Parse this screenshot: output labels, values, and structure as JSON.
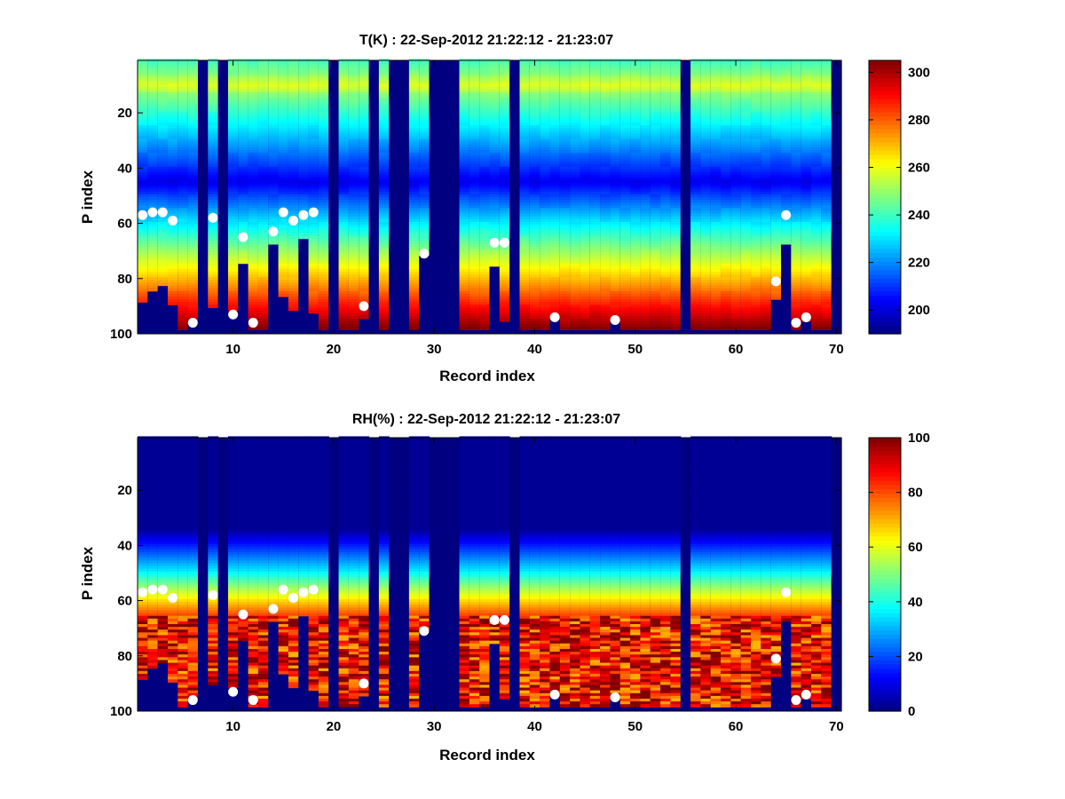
{
  "figure": {
    "background": "#ffffff"
  },
  "chart_data": [
    {
      "type": "heatmap",
      "title": "T(K) : 22-Sep-2012 21:22:12 - 21:23:07",
      "xlabel": "Record index",
      "ylabel": "P index",
      "xlim": [
        0.5,
        70.5
      ],
      "ylim": [
        1,
        100
      ],
      "y_reversed": true,
      "xticks": [
        10,
        20,
        30,
        40,
        50,
        60,
        70
      ],
      "yticks": [
        20,
        40,
        60,
        80,
        100
      ],
      "colorbar": {
        "min": 190,
        "max": 305,
        "ticks": [
          200,
          220,
          240,
          260,
          280,
          300
        ],
        "colormap": "jet"
      },
      "field": "temperature",
      "markers": {
        "color": "#ffffff",
        "records": [
          1,
          2,
          3,
          4,
          6,
          8,
          10,
          11,
          12,
          14,
          15,
          16,
          17,
          18,
          23,
          29,
          36,
          37,
          42,
          48,
          64,
          65,
          66,
          67
        ],
        "p_index": [
          57,
          56,
          56,
          59,
          96,
          58,
          93,
          65,
          96,
          63,
          56,
          59,
          57,
          56,
          90,
          71,
          67,
          67,
          94,
          95,
          81,
          57,
          96,
          94
        ]
      }
    },
    {
      "type": "heatmap",
      "title": "RH(%) : 22-Sep-2012 21:22:12 - 21:23:07",
      "xlabel": "Record index",
      "ylabel": "P index",
      "xlim": [
        0.5,
        70.5
      ],
      "ylim": [
        1,
        100
      ],
      "y_reversed": true,
      "xticks": [
        10,
        20,
        30,
        40,
        50,
        60,
        70
      ],
      "yticks": [
        20,
        40,
        60,
        80,
        100
      ],
      "colorbar": {
        "min": 0,
        "max": 100,
        "ticks": [
          0,
          20,
          40,
          60,
          80,
          100
        ],
        "colormap": "jet"
      },
      "field": "humidity",
      "markers": {
        "color": "#ffffff",
        "records": [
          1,
          2,
          3,
          4,
          6,
          8,
          10,
          11,
          12,
          14,
          15,
          16,
          17,
          18,
          23,
          29,
          36,
          37,
          42,
          48,
          64,
          65,
          66,
          67
        ],
        "p_index": [
          57,
          56,
          56,
          59,
          96,
          58,
          93,
          65,
          96,
          63,
          56,
          59,
          57,
          56,
          90,
          71,
          67,
          67,
          94,
          95,
          81,
          57,
          96,
          94
        ]
      }
    }
  ],
  "profile_cutoff": {
    "description_of_data": "last valid P index per record (above it the column is masked/filled with the minimum colour)",
    "records": [
      1,
      2,
      3,
      4,
      5,
      6,
      7,
      8,
      9,
      10,
      11,
      12,
      13,
      14,
      15,
      16,
      17,
      18,
      19,
      20,
      21,
      22,
      23,
      24,
      25,
      26,
      27,
      28,
      29,
      30,
      31,
      32,
      33,
      34,
      35,
      36,
      37,
      38,
      39,
      40,
      41,
      42,
      43,
      44,
      45,
      46,
      47,
      48,
      49,
      50,
      51,
      52,
      53,
      54,
      55,
      56,
      57,
      58,
      59,
      60,
      61,
      62,
      63,
      64,
      65,
      66,
      67,
      68,
      69,
      70
    ],
    "last_valid_p": [
      88,
      84,
      82,
      89,
      98,
      95,
      0,
      90,
      0,
      91,
      74,
      98,
      98,
      67,
      86,
      91,
      65,
      92,
      98,
      0,
      98,
      98,
      94,
      0,
      98,
      0,
      0,
      98,
      71,
      0,
      0,
      0,
      98,
      98,
      98,
      75,
      95,
      0,
      98,
      98,
      98,
      94,
      98,
      98,
      98,
      98,
      98,
      95,
      98,
      98,
      98,
      98,
      98,
      98,
      0,
      98,
      98,
      98,
      98,
      98,
      98,
      98,
      98,
      87,
      67,
      98,
      95,
      98,
      98,
      0
    ]
  }
}
